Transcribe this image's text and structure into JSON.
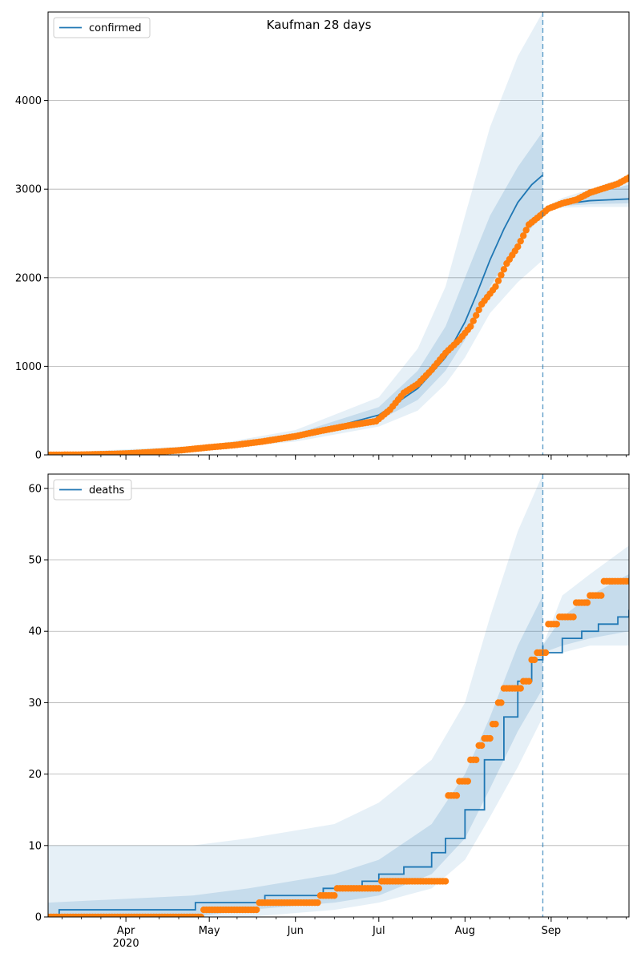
{
  "figure": {
    "title": "Kaufman 28 days"
  },
  "colors": {
    "line": "#1f77b4",
    "points": "#ff7f0e",
    "band": "#1f77b4",
    "grid": "#b0b0b0",
    "vline": "#1f77b4"
  },
  "x_axis": {
    "start": "2020-03-04",
    "end": "2020-09-29",
    "month_labels": [
      {
        "date": "2020-04-01",
        "label": "Apr",
        "sublabel": "2020"
      },
      {
        "date": "2020-05-01",
        "label": "May"
      },
      {
        "date": "2020-06-01",
        "label": "Jun"
      },
      {
        "date": "2020-07-01",
        "label": "Jul"
      },
      {
        "date": "2020-08-01",
        "label": "Aug"
      },
      {
        "date": "2020-09-01",
        "label": "Sep"
      }
    ],
    "forecast_start": "2020-08-29"
  },
  "chart_data": [
    {
      "type": "line",
      "legend": "confirmed",
      "legend_position": "top-left",
      "ylim": [
        0,
        5000
      ],
      "yticks": [
        0,
        1000,
        2000,
        3000,
        4000
      ],
      "grid": "horizontal",
      "fit_line": [
        [
          "2020-03-04",
          0
        ],
        [
          "2020-04-01",
          5
        ],
        [
          "2020-05-01",
          80
        ],
        [
          "2020-06-01",
          200
        ],
        [
          "2020-07-01",
          450
        ],
        [
          "2020-07-15",
          750
        ],
        [
          "2020-07-25",
          1100
        ],
        [
          "2020-08-01",
          1500
        ],
        [
          "2020-08-05",
          1800
        ],
        [
          "2020-08-10",
          2200
        ],
        [
          "2020-08-15",
          2550
        ],
        [
          "2020-08-20",
          2850
        ],
        [
          "2020-08-25",
          3050
        ],
        [
          "2020-08-29",
          3160
        ]
      ],
      "forecast_line": [
        [
          "2020-08-29",
          2760
        ],
        [
          "2020-09-05",
          2830
        ],
        [
          "2020-09-15",
          2870
        ],
        [
          "2020-09-29",
          2890
        ]
      ],
      "band_outer": [
        [
          "2020-03-04",
          0,
          20
        ],
        [
          "2020-05-01",
          60,
          110
        ],
        [
          "2020-06-01",
          150,
          280
        ],
        [
          "2020-07-01",
          320,
          650
        ],
        [
          "2020-07-15",
          500,
          1200
        ],
        [
          "2020-07-25",
          800,
          1900
        ],
        [
          "2020-08-01",
          1100,
          2700
        ],
        [
          "2020-08-10",
          1600,
          3700
        ],
        [
          "2020-08-20",
          1950,
          4500
        ],
        [
          "2020-08-29",
          2200,
          5000
        ]
      ],
      "band_inner": [
        [
          "2020-03-04",
          0,
          10
        ],
        [
          "2020-05-01",
          70,
          95
        ],
        [
          "2020-06-01",
          175,
          240
        ],
        [
          "2020-07-01",
          390,
          540
        ],
        [
          "2020-07-15",
          620,
          950
        ],
        [
          "2020-07-25",
          950,
          1450
        ],
        [
          "2020-08-01",
          1300,
          2000
        ],
        [
          "2020-08-10",
          1900,
          2700
        ],
        [
          "2020-08-20",
          2400,
          3250
        ],
        [
          "2020-08-29",
          2700,
          3650
        ]
      ],
      "forecast_band_outer": [
        [
          "2020-08-29",
          2750,
          2780
        ],
        [
          "2020-09-05",
          2790,
          2900
        ],
        [
          "2020-09-15",
          2800,
          3000
        ],
        [
          "2020-09-29",
          2800,
          3150
        ]
      ],
      "forecast_band_inner": [
        [
          "2020-08-29",
          2755,
          2770
        ],
        [
          "2020-09-05",
          2810,
          2870
        ],
        [
          "2020-09-15",
          2830,
          2940
        ],
        [
          "2020-09-29",
          2840,
          3050
        ]
      ],
      "observed": [
        [
          "2020-03-04",
          0
        ],
        [
          "2020-03-15",
          2
        ],
        [
          "2020-03-25",
          8
        ],
        [
          "2020-04-01",
          15
        ],
        [
          "2020-04-10",
          30
        ],
        [
          "2020-04-20",
          50
        ],
        [
          "2020-05-01",
          85
        ],
        [
          "2020-05-10",
          110
        ],
        [
          "2020-05-20",
          150
        ],
        [
          "2020-06-01",
          210
        ],
        [
          "2020-06-10",
          270
        ],
        [
          "2020-06-20",
          330
        ],
        [
          "2020-06-30",
          380
        ],
        [
          "2020-07-05",
          510
        ],
        [
          "2020-07-10",
          700
        ],
        [
          "2020-07-15",
          800
        ],
        [
          "2020-07-20",
          960
        ],
        [
          "2020-07-25",
          1150
        ],
        [
          "2020-07-30",
          1300
        ],
        [
          "2020-08-03",
          1450
        ],
        [
          "2020-08-07",
          1700
        ],
        [
          "2020-08-12",
          1900
        ],
        [
          "2020-08-16",
          2160
        ],
        [
          "2020-08-20",
          2350
        ],
        [
          "2020-08-24",
          2600
        ],
        [
          "2020-08-28",
          2700
        ],
        [
          "2020-08-31",
          2780
        ],
        [
          "2020-09-05",
          2840
        ],
        [
          "2020-09-10",
          2880
        ],
        [
          "2020-09-15",
          2960
        ],
        [
          "2020-09-20",
          3010
        ],
        [
          "2020-09-25",
          3060
        ],
        [
          "2020-09-29",
          3130
        ]
      ]
    },
    {
      "type": "line",
      "legend": "deaths",
      "legend_position": "top-left",
      "ylim": [
        0,
        62
      ],
      "yticks": [
        0,
        10,
        20,
        30,
        40,
        50,
        60
      ],
      "grid": "horizontal",
      "fit_line": [
        [
          "2020-03-04",
          0
        ],
        [
          "2020-03-08",
          1
        ],
        [
          "2020-04-25",
          1
        ],
        [
          "2020-04-26",
          2
        ],
        [
          "2020-05-20",
          2
        ],
        [
          "2020-05-21",
          3
        ],
        [
          "2020-06-10",
          3
        ],
        [
          "2020-06-11",
          4
        ],
        [
          "2020-06-25",
          5
        ],
        [
          "2020-07-01",
          6
        ],
        [
          "2020-07-10",
          7
        ],
        [
          "2020-07-20",
          9
        ],
        [
          "2020-07-25",
          11
        ],
        [
          "2020-08-01",
          15
        ],
        [
          "2020-08-08",
          22
        ],
        [
          "2020-08-15",
          28
        ],
        [
          "2020-08-20",
          33
        ],
        [
          "2020-08-25",
          36
        ],
        [
          "2020-08-29",
          38
        ]
      ],
      "forecast_line": [
        [
          "2020-08-29",
          37
        ],
        [
          "2020-09-05",
          39
        ],
        [
          "2020-09-12",
          40
        ],
        [
          "2020-09-18",
          41
        ],
        [
          "2020-09-25",
          42
        ],
        [
          "2020-09-29",
          43
        ]
      ],
      "band_outer": [
        [
          "2020-03-04",
          0,
          10
        ],
        [
          "2020-04-25",
          0,
          10
        ],
        [
          "2020-05-15",
          0,
          11
        ],
        [
          "2020-06-15",
          1,
          13
        ],
        [
          "2020-07-01",
          2,
          16
        ],
        [
          "2020-07-20",
          4,
          22
        ],
        [
          "2020-08-01",
          8,
          30
        ],
        [
          "2020-08-10",
          14,
          42
        ],
        [
          "2020-08-20",
          21,
          54
        ],
        [
          "2020-08-29",
          28,
          62
        ]
      ],
      "band_inner": [
        [
          "2020-03-04",
          0,
          2
        ],
        [
          "2020-04-25",
          0,
          3
        ],
        [
          "2020-05-15",
          1,
          4
        ],
        [
          "2020-06-15",
          2,
          6
        ],
        [
          "2020-07-01",
          3,
          8
        ],
        [
          "2020-07-20",
          6,
          13
        ],
        [
          "2020-08-01",
          11,
          20
        ],
        [
          "2020-08-10",
          18,
          28
        ],
        [
          "2020-08-20",
          26,
          38
        ],
        [
          "2020-08-29",
          32,
          45
        ]
      ],
      "forecast_band_outer": [
        [
          "2020-08-29",
          37,
          38
        ],
        [
          "2020-09-05",
          37,
          45
        ],
        [
          "2020-09-15",
          38,
          48
        ],
        [
          "2020-09-29",
          38,
          52
        ]
      ],
      "forecast_band_inner": [
        [
          "2020-08-29",
          37,
          38
        ],
        [
          "2020-09-05",
          38,
          42
        ],
        [
          "2020-09-15",
          39,
          45
        ],
        [
          "2020-09-29",
          40,
          48
        ]
      ],
      "observed": [
        [
          "2020-03-04",
          0
        ],
        [
          "2020-04-01",
          0
        ],
        [
          "2020-04-28",
          0
        ],
        [
          "2020-04-29",
          1
        ],
        [
          "2020-05-18",
          1
        ],
        [
          "2020-05-19",
          2
        ],
        [
          "2020-06-09",
          2
        ],
        [
          "2020-06-10",
          3
        ],
        [
          "2020-06-15",
          3
        ],
        [
          "2020-06-16",
          4
        ],
        [
          "2020-07-01",
          4
        ],
        [
          "2020-07-02",
          5
        ],
        [
          "2020-07-25",
          5
        ],
        [
          "2020-07-26",
          17
        ],
        [
          "2020-07-30",
          19
        ],
        [
          "2020-08-03",
          22
        ],
        [
          "2020-08-06",
          24
        ],
        [
          "2020-08-08",
          25
        ],
        [
          "2020-08-11",
          27
        ],
        [
          "2020-08-13",
          30
        ],
        [
          "2020-08-15",
          32
        ],
        [
          "2020-08-22",
          33
        ],
        [
          "2020-08-25",
          36
        ],
        [
          "2020-08-27",
          37
        ],
        [
          "2020-08-31",
          41
        ],
        [
          "2020-09-04",
          42
        ],
        [
          "2020-09-10",
          44
        ],
        [
          "2020-09-15",
          45
        ],
        [
          "2020-09-20",
          47
        ],
        [
          "2020-09-29",
          47
        ]
      ]
    }
  ]
}
